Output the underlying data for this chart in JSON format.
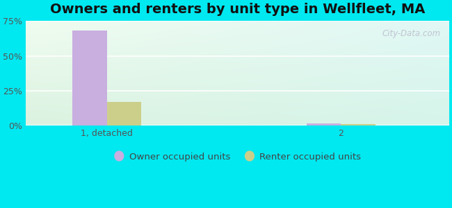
{
  "title": "Owners and renters by unit type in Wellfleet, MA",
  "categories": [
    "1, detached",
    "2"
  ],
  "owner_values": [
    68.0,
    1.8
  ],
  "renter_values": [
    17.0,
    1.0
  ],
  "owner_color": "#c9aee0",
  "renter_color": "#cccf8a",
  "ylim": [
    0,
    75
  ],
  "yticks": [
    0,
    25,
    50,
    75
  ],
  "yticklabels": [
    "0%",
    "25%",
    "50%",
    "75%"
  ],
  "outer_bg": "#00e8f0",
  "bar_width": 0.38,
  "group_positions": [
    1.0,
    3.6
  ],
  "watermark": "City-Data.com",
  "legend_owner": "Owner occupied units",
  "legend_renter": "Renter occupied units",
  "title_fontsize": 14,
  "tick_fontsize": 9,
  "xlim": [
    0.1,
    4.8
  ]
}
